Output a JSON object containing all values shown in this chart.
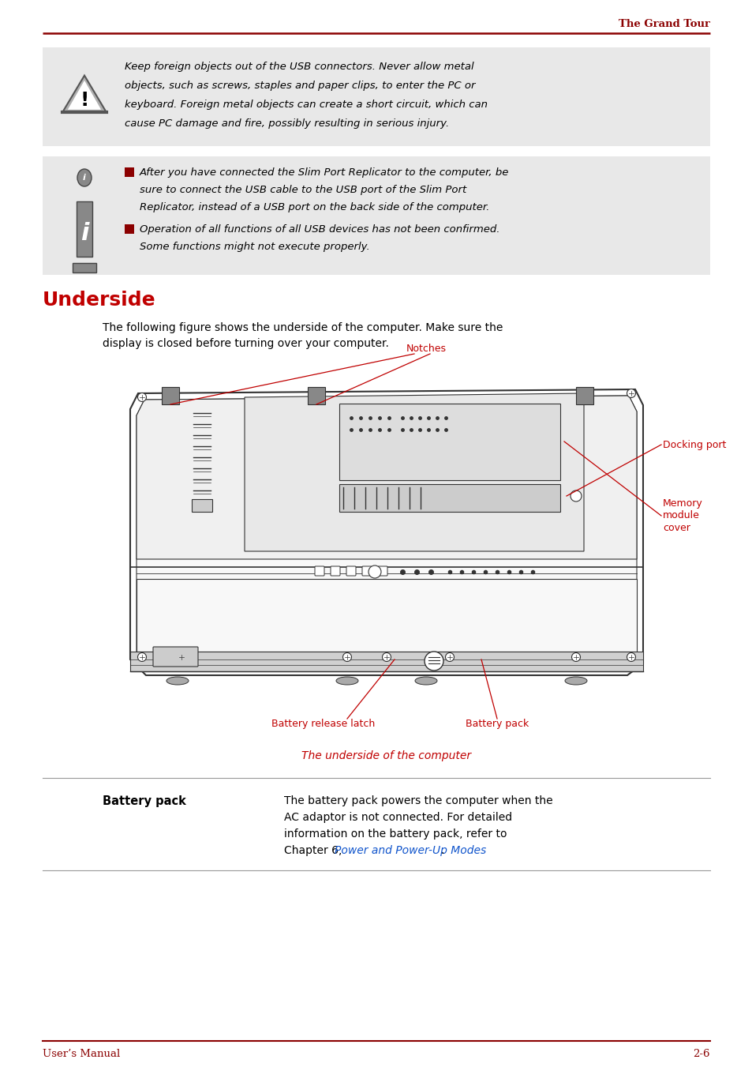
{
  "page_title": "The Grand Tour",
  "page_title_color": "#8B0000",
  "header_line_color": "#8B0000",
  "background_color": "#FFFFFF",
  "warning_box_color": "#E8E8E8",
  "info_box_color": "#E8E8E8",
  "section_title": "Underside",
  "section_title_color": "#C00000",
  "section_intro_line1": "The following figure shows the underside of the computer. Make sure the",
  "section_intro_line2": "display is closed before turning over your computer.",
  "warning_text_line1": "Keep foreign objects out of the USB connectors. Never allow metal",
  "warning_text_line2": "objects, such as screws, staples and paper clips, to enter the PC or",
  "warning_text_line3": "keyboard. Foreign metal objects can create a short circuit, which can",
  "warning_text_line4": "cause PC damage and fire, possibly resulting in serious injury.",
  "info_bullet1_line1": "After you have connected the Slim Port Replicator to the computer, be",
  "info_bullet1_line2": "sure to connect the USB cable to the USB port of the Slim Port",
  "info_bullet1_line3": "Replicator, instead of a USB port on the back side of the computer.",
  "info_bullet2_line1": "Operation of all functions of all USB devices has not been confirmed.",
  "info_bullet2_line2": "Some functions might not execute properly.",
  "label_notches": "Notches",
  "label_docking": "Docking port",
  "label_memory": "Memory\nmodule\ncover",
  "label_battery_release": "Battery release latch",
  "label_battery_pack": "Battery pack",
  "label_caption": "The underside of the computer",
  "label_color": "#C00000",
  "caption_color": "#C00000",
  "battery_pack_header": "Battery pack",
  "battery_pack_text_line1": "The battery pack powers the computer when the",
  "battery_pack_text_line2": "AC adaptor is not connected. For detailed",
  "battery_pack_text_line3": "information on the battery pack, refer to",
  "battery_pack_text_line4_pre": "Chapter 6, ",
  "battery_pack_link": "Power and Power-Up Modes",
  "battery_pack_link_color": "#1155CC",
  "battery_pack_suffix": ".",
  "footer_left": "User’s Manual",
  "footer_right": "2-6",
  "footer_color": "#8B0000",
  "text_color": "#000000",
  "bullet_color": "#8B0000",
  "line_color": "#999999",
  "draw_color": "#333333"
}
